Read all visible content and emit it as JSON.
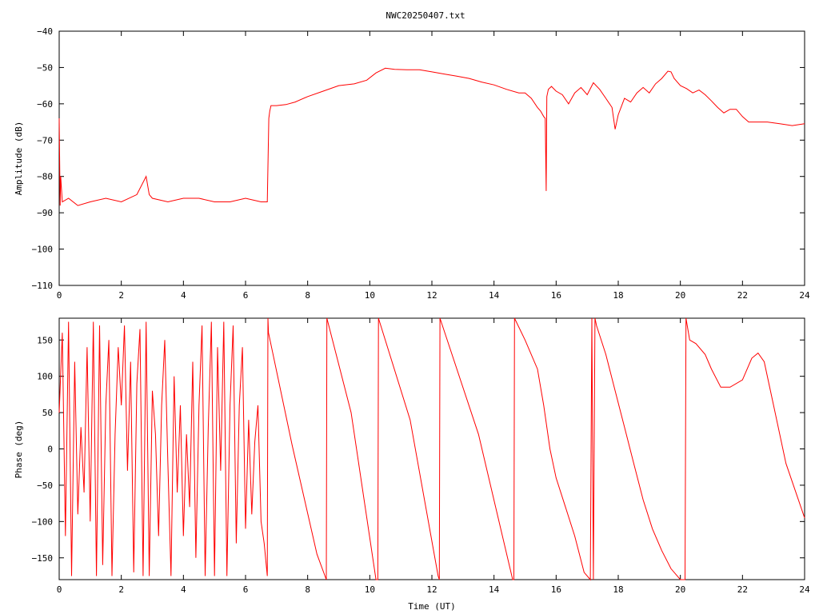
{
  "figure": {
    "title": "NWC20250407.txt",
    "trace_color": "#ff0000"
  },
  "chart_data": [
    {
      "type": "line",
      "name": "amplitude",
      "title": "NWC20250407.txt",
      "xlabel": "",
      "ylabel": "Amplitude (dB)",
      "xlim": [
        0,
        24
      ],
      "ylim": [
        -110,
        -40
      ],
      "xticks": [
        0,
        2,
        4,
        6,
        8,
        10,
        12,
        14,
        16,
        18,
        20,
        22,
        24
      ],
      "yticks": [
        -110,
        -100,
        -90,
        -80,
        -70,
        -60,
        -50,
        -40
      ],
      "grid": false,
      "series": [
        {
          "x": [
            0,
            0.03,
            0.05,
            0.1,
            0.3,
            0.6,
            1.0,
            1.5,
            2.0,
            2.5,
            2.8,
            2.9,
            3.0,
            3.5,
            4.0,
            4.5,
            5.0,
            5.5,
            6.0,
            6.5,
            6.7,
            6.75,
            6.78,
            6.82,
            7.0,
            7.3,
            7.6,
            8.0,
            8.5,
            9.0,
            9.5,
            9.9,
            10.2,
            10.5,
            10.8,
            11.2,
            11.6,
            12.0,
            12.4,
            12.8,
            13.2,
            13.6,
            14.0,
            14.4,
            14.8,
            15.0,
            15.2,
            15.4,
            15.5,
            15.6,
            15.65,
            15.68,
            15.7,
            15.75,
            15.85,
            16.0,
            16.2,
            16.4,
            16.6,
            16.8,
            17.0,
            17.2,
            17.4,
            17.6,
            17.8,
            17.9,
            18.0,
            18.2,
            18.4,
            18.6,
            18.8,
            19.0,
            19.2,
            19.4,
            19.6,
            19.7,
            19.8,
            20.0,
            20.2,
            20.4,
            20.6,
            20.8,
            21.0,
            21.2,
            21.4,
            21.6,
            21.8,
            22.0,
            22.2,
            22.4,
            22.8,
            23.2,
            23.6,
            24.0
          ],
          "y": [
            -64,
            -88,
            -80,
            -87,
            -86,
            -88,
            -87,
            -86,
            -87,
            -85,
            -80,
            -85,
            -86,
            -87,
            -86,
            -86,
            -87,
            -87,
            -86,
            -87,
            -87,
            -64,
            -62,
            -60.5,
            -60.5,
            -60.2,
            -59.5,
            -58,
            -56.5,
            -55,
            -54.5,
            -53.5,
            -51.5,
            -50.2,
            -50.5,
            -50.6,
            -50.6,
            -51.2,
            -51.8,
            -52.4,
            -53,
            -54,
            -54.8,
            -56,
            -57,
            -57,
            -58.5,
            -61,
            -62,
            -63.5,
            -64,
            -84,
            -58,
            -56,
            -55.2,
            -56.5,
            -57.5,
            -60,
            -57,
            -55.5,
            -57.5,
            -54.2,
            -56,
            -58.5,
            -61,
            -67,
            -63,
            -58.5,
            -59.5,
            -57,
            -55.5,
            -57,
            -54.5,
            -53,
            -51,
            -51.2,
            -53,
            -55,
            -55.8,
            -57,
            -56.2,
            -57.5,
            -59.2,
            -61,
            -62.5,
            -61.5,
            -61.5,
            -63.5,
            -65,
            -65,
            -65,
            -65.5,
            -66,
            -65.5
          ]
        }
      ]
    },
    {
      "type": "line",
      "name": "phase",
      "title": "",
      "xlabel": "Time (UT)",
      "ylabel": "Phase (deg)",
      "xlim": [
        0,
        24
      ],
      "ylim": [
        -180,
        180
      ],
      "xticks": [
        0,
        2,
        4,
        6,
        8,
        10,
        12,
        14,
        16,
        18,
        20,
        22,
        24
      ],
      "yticks": [
        -150,
        -100,
        -50,
        0,
        50,
        100,
        150
      ],
      "grid": false,
      "series": [
        {
          "x": [
            0,
            0.1,
            0.2,
            0.3,
            0.4,
            0.5,
            0.6,
            0.7,
            0.8,
            0.9,
            1.0,
            1.1,
            1.2,
            1.3,
            1.4,
            1.5,
            1.6,
            1.7,
            1.8,
            1.9,
            2.0,
            2.1,
            2.2,
            2.3,
            2.4,
            2.5,
            2.6,
            2.7,
            2.8,
            2.9,
            3.0,
            3.1,
            3.2,
            3.3,
            3.4,
            3.5,
            3.6,
            3.7,
            3.8,
            3.9,
            4.0,
            4.1,
            4.2,
            4.3,
            4.4,
            4.5,
            4.6,
            4.7,
            4.8,
            4.9,
            5.0,
            5.1,
            5.2,
            5.3,
            5.4,
            5.5,
            5.6,
            5.7,
            5.8,
            5.9,
            6.0,
            6.1,
            6.2,
            6.3,
            6.4,
            6.5,
            6.6,
            6.7,
            6.72,
            6.74,
            7.5,
            8.3,
            8.6,
            8.62,
            9.4,
            10.2,
            10.26,
            10.28,
            11.3,
            12.2,
            12.24,
            12.26,
            13.5,
            14.6,
            14.64,
            14.66,
            15.0,
            15.4,
            15.6,
            15.8,
            16.0,
            16.3,
            16.6,
            16.9,
            17.1,
            17.15,
            17.2,
            17.25,
            17.3,
            17.6,
            17.9,
            18.2,
            18.5,
            18.8,
            19.1,
            19.4,
            19.7,
            20.0,
            20.15,
            20.18,
            20.3,
            20.5,
            20.8,
            21.0,
            21.3,
            21.6,
            22.0,
            22.3,
            22.5,
            22.7,
            23.0,
            23.4,
            24.0
          ],
          "y": [
            50,
            160,
            -120,
            175,
            -175,
            120,
            -90,
            30,
            -60,
            140,
            -100,
            175,
            -175,
            170,
            -160,
            60,
            150,
            -175,
            20,
            140,
            60,
            170,
            -30,
            120,
            -170,
            90,
            165,
            -175,
            175,
            -175,
            80,
            20,
            -120,
            60,
            150,
            -20,
            -175,
            100,
            -60,
            60,
            -120,
            20,
            -80,
            120,
            -150,
            60,
            170,
            -175,
            30,
            175,
            -175,
            140,
            -30,
            175,
            -175,
            60,
            170,
            -130,
            60,
            140,
            -110,
            40,
            -90,
            10,
            60,
            -100,
            -130,
            -175,
            180,
            160,
            5,
            -145,
            -180,
            180,
            50,
            -180,
            -180,
            180,
            40,
            -175,
            -180,
            180,
            20,
            -180,
            -180,
            180,
            150,
            110,
            60,
            0,
            -40,
            -80,
            -120,
            -170,
            -180,
            180,
            -180,
            180,
            170,
            130,
            80,
            30,
            -20,
            -70,
            -110,
            -140,
            -165,
            -180,
            -180,
            180,
            150,
            145,
            130,
            110,
            85,
            85,
            95,
            125,
            132,
            120,
            60,
            -20,
            -95
          ]
        }
      ]
    }
  ]
}
